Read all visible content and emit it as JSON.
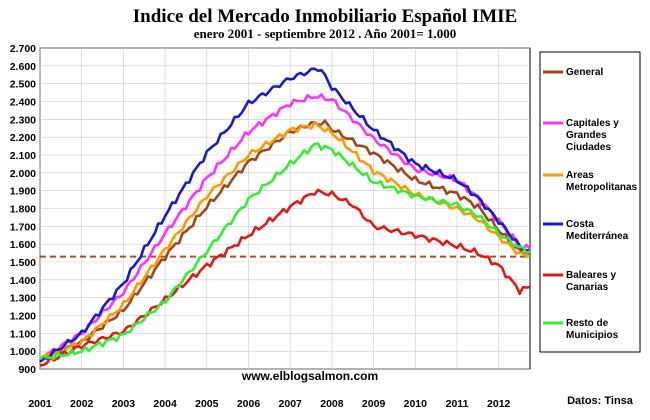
{
  "chart_data": {
    "type": "line",
    "title": "Indice del Mercado Inmobiliario Español IMIE",
    "subtitle": "enero 2001 - septiembre 2012 .  Año 2001= 1.000",
    "x_tick_labels": [
      "2001",
      "2002",
      "2003",
      "2004",
      "2005",
      "2006",
      "2007",
      "2008",
      "2009",
      "2010",
      "2011",
      "2012"
    ],
    "y_tick_labels": [
      "900",
      "1.000",
      "1.100",
      "1.200",
      "1.300",
      "1.400",
      "1.500",
      "1.600",
      "1.700",
      "1.800",
      "1.900",
      "2.000",
      "2.100",
      "2.200",
      "2.300",
      "2.400",
      "2.500",
      "2.600",
      "2.700"
    ],
    "xlim": [
      2001,
      2012.75
    ],
    "ylim": [
      900,
      2700
    ],
    "grid": true,
    "legend_position": "right",
    "reference_line": {
      "y": 1530,
      "color": "#a0522d",
      "style": "dashed"
    },
    "annotation": "www.elblogsalmon.com",
    "source": "Datos: Tinsa",
    "series": [
      {
        "name": "General",
        "color": "#a0461e",
        "points": [
          [
            2001,
            950
          ],
          [
            2002,
            1050
          ],
          [
            2003,
            1230
          ],
          [
            2004,
            1530
          ],
          [
            2005,
            1810
          ],
          [
            2006,
            2060
          ],
          [
            2007,
            2230
          ],
          [
            2007.5,
            2275
          ],
          [
            2007.85,
            2280
          ],
          [
            2008,
            2245
          ],
          [
            2009,
            2110
          ],
          [
            2010,
            1960
          ],
          [
            2011,
            1880
          ],
          [
            2011.5,
            1810
          ],
          [
            2012,
            1680
          ],
          [
            2012.5,
            1560
          ],
          [
            2012.75,
            1550
          ]
        ]
      },
      {
        "name": "Capitales y Grandes Ciudades",
        "color": "#ff33ff",
        "points": [
          [
            2001,
            955
          ],
          [
            2002,
            1100
          ],
          [
            2003,
            1330
          ],
          [
            2004,
            1660
          ],
          [
            2005,
            1970
          ],
          [
            2006,
            2230
          ],
          [
            2007,
            2390
          ],
          [
            2007.6,
            2430
          ],
          [
            2008,
            2410
          ],
          [
            2009,
            2190
          ],
          [
            2010,
            2020
          ],
          [
            2011,
            1960
          ],
          [
            2011.5,
            1860
          ],
          [
            2012,
            1730
          ],
          [
            2012.5,
            1590
          ],
          [
            2012.75,
            1570
          ]
        ]
      },
      {
        "name": "Areas Metropolitanas",
        "color": "#ff9900",
        "points": [
          [
            2001,
            955
          ],
          [
            2002,
            1050
          ],
          [
            2003,
            1260
          ],
          [
            2004,
            1570
          ],
          [
            2005,
            1870
          ],
          [
            2006,
            2100
          ],
          [
            2007,
            2240
          ],
          [
            2007.6,
            2270
          ],
          [
            2008,
            2225
          ],
          [
            2009,
            2010
          ],
          [
            2010,
            1880
          ],
          [
            2011,
            1800
          ],
          [
            2011.5,
            1740
          ],
          [
            2012,
            1640
          ],
          [
            2012.5,
            1545
          ],
          [
            2012.75,
            1530
          ]
        ]
      },
      {
        "name": "Costa Mediterránea",
        "color": "#1a1acc",
        "points": [
          [
            2001,
            940
          ],
          [
            2002,
            1100
          ],
          [
            2003,
            1380
          ],
          [
            2004,
            1760
          ],
          [
            2005,
            2110
          ],
          [
            2006,
            2390
          ],
          [
            2007,
            2530
          ],
          [
            2007.7,
            2590
          ],
          [
            2008,
            2480
          ],
          [
            2009,
            2240
          ],
          [
            2010,
            2050
          ],
          [
            2011,
            1960
          ],
          [
            2011.5,
            1860
          ],
          [
            2012,
            1730
          ],
          [
            2012.5,
            1590
          ],
          [
            2012.75,
            1560
          ]
        ]
      },
      {
        "name": "Baleares y Canarias",
        "color": "#e01818",
        "points": [
          [
            2001,
            920
          ],
          [
            2002,
            1030
          ],
          [
            2003,
            1110
          ],
          [
            2004,
            1290
          ],
          [
            2005,
            1480
          ],
          [
            2006,
            1650
          ],
          [
            2007,
            1810
          ],
          [
            2007.6,
            1895
          ],
          [
            2008,
            1880
          ],
          [
            2008.5,
            1820
          ],
          [
            2009,
            1700
          ],
          [
            2010,
            1650
          ],
          [
            2011,
            1590
          ],
          [
            2011.5,
            1550
          ],
          [
            2012,
            1480
          ],
          [
            2012.5,
            1340
          ],
          [
            2012.75,
            1360
          ]
        ]
      },
      {
        "name": "Resto de Municipios",
        "color": "#33ee33",
        "points": [
          [
            2001,
            955
          ],
          [
            2002,
            1000
          ],
          [
            2003,
            1090
          ],
          [
            2004,
            1280
          ],
          [
            2005,
            1560
          ],
          [
            2006,
            1850
          ],
          [
            2007,
            2050
          ],
          [
            2007.6,
            2160
          ],
          [
            2008,
            2130
          ],
          [
            2009,
            1950
          ],
          [
            2010,
            1870
          ],
          [
            2011,
            1820
          ],
          [
            2011.5,
            1760
          ],
          [
            2012,
            1660
          ],
          [
            2012.5,
            1580
          ],
          [
            2012.75,
            1560
          ]
        ]
      }
    ]
  }
}
